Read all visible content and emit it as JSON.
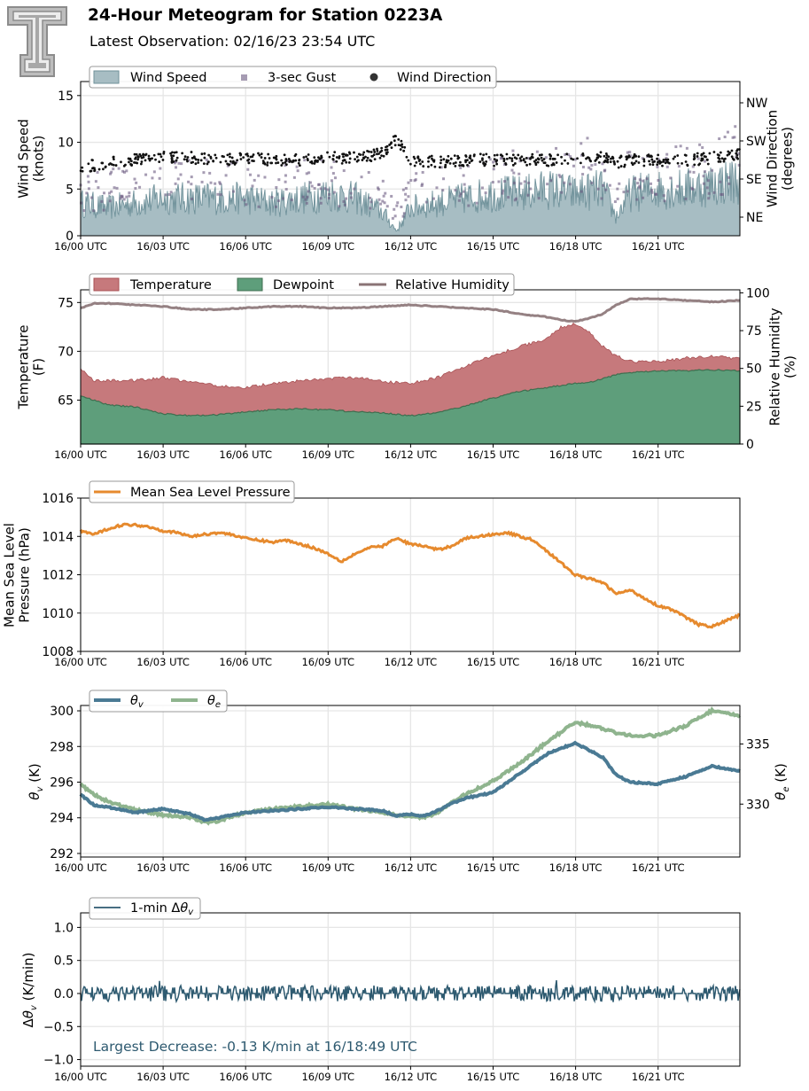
{
  "header": {
    "title": "24-Hour Meteogram for Station 0223A",
    "subtitle": "Latest Observation: 02/16/23 23:54 UTC",
    "logo": "tt-logo"
  },
  "x_ticks": [
    "16/00 UTC",
    "16/03 UTC",
    "16/06 UTC",
    "16/09 UTC",
    "16/12 UTC",
    "16/15 UTC",
    "16/18 UTC",
    "16/21 UTC"
  ],
  "colors": {
    "wind_speed": "#7f9fa8",
    "gust": "#6b5a80",
    "wind_dir": "#111111",
    "temperature": "#b85a5e",
    "dewpoint": "#3b8a5e",
    "rh": "#8a7375",
    "pressure": "#e68a2e",
    "theta_v": "#4a7a94",
    "theta_e": "#8fb48e",
    "dtheta": "#2e5a70",
    "annotation": "#2e5a70"
  },
  "chart_data": [
    {
      "type": "area",
      "name": "wind",
      "ylabel": "Wind Speed\n(knots)",
      "ylabel2": "Wind Direction\n(degrees)",
      "ylim": [
        0,
        16.5
      ],
      "yticks": [
        "0",
        "5",
        "10",
        "15"
      ],
      "y2ticks": [
        "NE",
        "SE",
        "SW",
        "NW"
      ],
      "legend": [
        "Wind Speed",
        "3-sec Gust",
        "Wind Direction"
      ],
      "x_hours": [
        0,
        1,
        2,
        3,
        4,
        5,
        6,
        7,
        8,
        9,
        10,
        11,
        11.5,
        12,
        13,
        14,
        15,
        16,
        17,
        18,
        19,
        19.5,
        20,
        21,
        22,
        23,
        24
      ],
      "wind_speed": [
        3.5,
        3,
        3.5,
        4,
        4,
        4,
        4,
        3.5,
        4,
        4.5,
        4,
        2.5,
        0.5,
        3,
        3.5,
        4,
        4.5,
        4.5,
        5,
        4.5,
        5,
        2,
        4.5,
        5,
        5,
        5.5,
        6
      ],
      "gust": [
        5.5,
        6,
        6.5,
        7,
        7,
        7,
        7,
        6.5,
        7,
        7,
        6.5,
        5,
        3,
        6,
        6.5,
        7,
        7.5,
        8,
        8,
        9,
        8.5,
        5,
        8,
        8,
        8,
        9,
        10
      ],
      "wind_dir_deg": [
        160,
        175,
        180,
        185,
        185,
        180,
        185,
        180,
        180,
        185,
        185,
        195,
        230,
        180,
        175,
        180,
        180,
        180,
        180,
        185,
        185,
        175,
        180,
        180,
        180,
        185,
        195
      ]
    },
    {
      "type": "area",
      "name": "thermo",
      "ylabel": "Temperature\n(F)",
      "ylabel2": "Relative Humidity\n(%)",
      "ylim": [
        60.5,
        76.3
      ],
      "yticks": [
        "65",
        "70",
        "75"
      ],
      "y2lim": [
        0,
        102
      ],
      "y2ticks": [
        "0",
        "25",
        "50",
        "75",
        "100"
      ],
      "legend": [
        "Temperature",
        "Dewpoint",
        "Relative Humidity"
      ],
      "x_hours": [
        0,
        0.5,
        1,
        2,
        3,
        4,
        5,
        6,
        7,
        8,
        9,
        10,
        11,
        12,
        13,
        14,
        15,
        16,
        17,
        17.5,
        18,
        18.5,
        19,
        19.5,
        20,
        21,
        22,
        23,
        24
      ],
      "temperature": [
        68.2,
        67,
        67,
        67,
        67.3,
        66.8,
        66.5,
        66.3,
        66.7,
        67,
        67.2,
        67.3,
        66.9,
        66.7,
        67.3,
        68.5,
        69.5,
        70.5,
        71.3,
        72.5,
        72.8,
        72,
        70.5,
        69.5,
        69,
        68.9,
        69.3,
        69.5,
        69.2
      ],
      "dewpoint": [
        65.4,
        65,
        64.5,
        64.3,
        63.6,
        63.4,
        63.5,
        63.8,
        64.0,
        64.1,
        64.0,
        63.8,
        63.7,
        63.4,
        63.7,
        64.4,
        65.2,
        65.9,
        66.3,
        66.5,
        66.7,
        66.8,
        67.2,
        67.6,
        67.8,
        68.0,
        68.0,
        68.1,
        68.0
      ],
      "relative_humidity": [
        90,
        93,
        93,
        92,
        91,
        89,
        89,
        90,
        91,
        91,
        90,
        90,
        91,
        92,
        91,
        90,
        89,
        86,
        84,
        82,
        81,
        83,
        86,
        92,
        96,
        96,
        95,
        94,
        95
      ]
    },
    {
      "type": "line",
      "name": "pressure",
      "ylabel": "Mean Sea Level\nPressure (hPa)",
      "ylim": [
        1008,
        1016
      ],
      "yticks": [
        "1008",
        "1010",
        "1012",
        "1014",
        "1016"
      ],
      "legend": [
        "Mean Sea Level Pressure"
      ],
      "x_hours": [
        0,
        0.5,
        1,
        1.5,
        2,
        2.5,
        3,
        3.5,
        4,
        4.5,
        5,
        5.5,
        6,
        6.5,
        7,
        7.5,
        8,
        8.5,
        9,
        9.5,
        10,
        10.5,
        11,
        11.5,
        12,
        12.5,
        13,
        13.5,
        14,
        14.5,
        15,
        15.5,
        16,
        16.5,
        17,
        17.5,
        18,
        18.5,
        19,
        19.5,
        20,
        20.5,
        21,
        21.5,
        22,
        22.5,
        23,
        23.5,
        24
      ],
      "values": [
        1014.3,
        1014.1,
        1014.4,
        1014.6,
        1014.6,
        1014.5,
        1014.3,
        1014.2,
        1014.0,
        1014.1,
        1014.2,
        1014.1,
        1013.9,
        1013.8,
        1013.7,
        1013.8,
        1013.6,
        1013.4,
        1013.1,
        1012.7,
        1013.1,
        1013.4,
        1013.5,
        1013.9,
        1013.6,
        1013.5,
        1013.3,
        1013.5,
        1013.9,
        1014.0,
        1014.1,
        1014.2,
        1014.0,
        1013.8,
        1013.2,
        1012.6,
        1012.0,
        1011.8,
        1011.6,
        1011.0,
        1011.2,
        1010.8,
        1010.4,
        1010.2,
        1009.8,
        1009.4,
        1009.3,
        1009.6,
        1009.9
      ]
    },
    {
      "type": "line",
      "name": "theta",
      "ylabel": "θv (K)",
      "ylabel2": "θe (K)",
      "ylim": [
        291.8,
        300.3
      ],
      "yticks": [
        "292",
        "294",
        "296",
        "298",
        "300"
      ],
      "y2lim": [
        325.6,
        338.2
      ],
      "y2ticks": [
        "330",
        "335"
      ],
      "legend": [
        "θv",
        "θe"
      ],
      "x_hours": [
        0,
        0.5,
        1,
        2,
        3,
        4,
        4.5,
        5,
        6,
        7,
        8,
        9,
        10,
        11,
        11.5,
        12,
        12.5,
        13,
        13.5,
        14,
        15,
        16,
        17,
        18,
        19,
        19.5,
        20,
        21,
        22,
        23,
        24
      ],
      "theta_v": [
        295.3,
        294.7,
        294.6,
        294.3,
        294.5,
        294.2,
        293.9,
        294.0,
        294.3,
        294.4,
        294.5,
        294.6,
        294.5,
        294.4,
        294.1,
        294.2,
        294.1,
        294.4,
        294.8,
        295.1,
        295.4,
        296.5,
        297.6,
        298.2,
        297.4,
        296.4,
        296.0,
        295.9,
        296.3,
        296.9,
        296.6
      ],
      "theta_e": [
        331.6,
        330.8,
        330.2,
        329.5,
        329.1,
        328.9,
        328.5,
        328.6,
        329.3,
        329.6,
        329.8,
        330.0,
        329.6,
        329.3,
        329.1,
        329.0,
        328.9,
        329.3,
        330.1,
        330.8,
        331.9,
        333.4,
        335.2,
        336.8,
        336.3,
        335.9,
        335.7,
        335.7,
        336.5,
        337.8,
        337.3
      ]
    },
    {
      "type": "line",
      "name": "dtheta",
      "ylabel": "Δθv (K/min)",
      "ylim": [
        -1.1,
        1.22
      ],
      "yticks": [
        "−1.0",
        "−0.5",
        "0.0",
        "0.5",
        "1.0"
      ],
      "legend": [
        "1-min Δθv"
      ],
      "annotation": "Largest Decrease: -0.13 K/min at 16/18:49 UTC",
      "largest_decrease": -0.13,
      "max_increase": 0.2
    }
  ]
}
